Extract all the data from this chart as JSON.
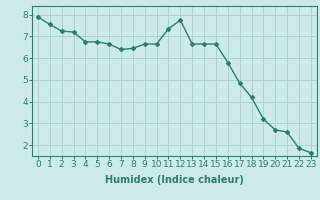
{
  "x": [
    0,
    1,
    2,
    3,
    4,
    5,
    6,
    7,
    8,
    9,
    10,
    11,
    12,
    13,
    14,
    15,
    16,
    17,
    18,
    19,
    20,
    21,
    22,
    23
  ],
  "y": [
    7.9,
    7.55,
    7.25,
    7.2,
    6.75,
    6.75,
    6.65,
    6.4,
    6.45,
    6.65,
    6.65,
    7.35,
    7.75,
    6.65,
    6.65,
    6.65,
    5.8,
    4.85,
    4.2,
    3.2,
    2.7,
    2.6,
    1.85,
    1.65
  ],
  "line_color": "#2e7d6e",
  "marker": "D",
  "marker_size": 2.0,
  "line_width": 1.0,
  "background_color": "#cceae7",
  "grid_color": "#aad4d0",
  "xlabel": "Humidex (Indice chaleur)",
  "xlabel_fontsize": 7,
  "tick_fontsize": 6.5,
  "ylim": [
    1.5,
    8.4
  ],
  "xlim": [
    -0.5,
    23.5
  ],
  "yticks": [
    2,
    3,
    4,
    5,
    6,
    7,
    8
  ],
  "xticks": [
    0,
    1,
    2,
    3,
    4,
    5,
    6,
    7,
    8,
    9,
    10,
    11,
    12,
    13,
    14,
    15,
    16,
    17,
    18,
    19,
    20,
    21,
    22,
    23
  ]
}
